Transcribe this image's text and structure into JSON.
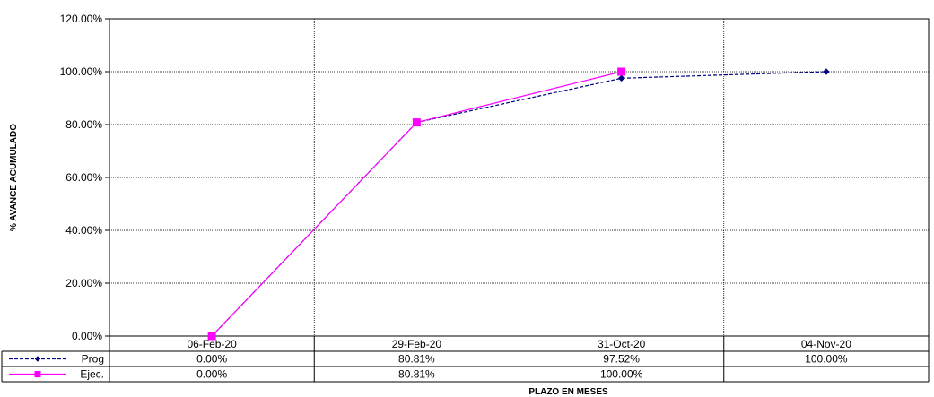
{
  "chart_data": {
    "type": "line",
    "title": "",
    "xlabel": "PLAZO EN MESES",
    "ylabel": "% AVANCE ACUMULADO",
    "ylim": [
      0,
      1.2
    ],
    "yticks": [
      0,
      0.2,
      0.4,
      0.6,
      0.8,
      1.0,
      1.2
    ],
    "ytick_labels": [
      "0.00%",
      "20.00%",
      "40.00%",
      "60.00%",
      "80.00%",
      "100.00%",
      "120.00%"
    ],
    "grid": true,
    "categories": [
      "06-Feb-20",
      "29-Feb-20",
      "31-Oct-20",
      "04-Nov-20"
    ],
    "series": [
      {
        "name": "Prog",
        "values": [
          0.0,
          0.8081,
          0.9752,
          1.0
        ],
        "labels": [
          "0.00%",
          "80.81%",
          "97.52%",
          "100.00%"
        ],
        "color": "#000080",
        "line_style": "dashed",
        "marker": "diamond"
      },
      {
        "name": "Ejec.",
        "values": [
          0.0,
          0.8081,
          1.0,
          null
        ],
        "labels": [
          "0.00%",
          "80.81%",
          "100.00%",
          ""
        ],
        "color": "#ff00ff",
        "line_style": "solid",
        "marker": "square"
      }
    ],
    "data_table": true
  }
}
